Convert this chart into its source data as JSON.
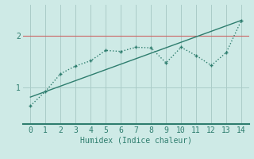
{
  "title": "",
  "xlabel": "Humidex (Indice chaleur)",
  "ylabel": "",
  "bg_color": "#ceeae6",
  "line_color": "#2e7d6e",
  "grid_color": "#aaccc8",
  "hline_color": "#cc6666",
  "hline_y": 2.0,
  "scatter_x": [
    0,
    1,
    2,
    3,
    4,
    5,
    6,
    7,
    8,
    9,
    10,
    11,
    12,
    13,
    14
  ],
  "scatter_y": [
    0.65,
    0.93,
    1.27,
    1.42,
    1.52,
    1.72,
    1.7,
    1.78,
    1.77,
    1.48,
    1.78,
    1.62,
    1.43,
    1.68,
    2.3
  ],
  "trend_x": [
    0,
    14
  ],
  "trend_y": [
    0.82,
    2.3
  ],
  "yticks": [
    1,
    2
  ],
  "xticks": [
    0,
    1,
    2,
    3,
    4,
    5,
    6,
    7,
    8,
    9,
    10,
    11,
    12,
    13,
    14
  ],
  "ylim": [
    0.3,
    2.6
  ],
  "xlim": [
    -0.5,
    14.5
  ],
  "marker_size": 3,
  "line_width": 1.0,
  "tick_fontsize": 7,
  "xlabel_fontsize": 7,
  "bottom_spine_color": "#2e7d6e",
  "bottom_spine_width": 1.5
}
